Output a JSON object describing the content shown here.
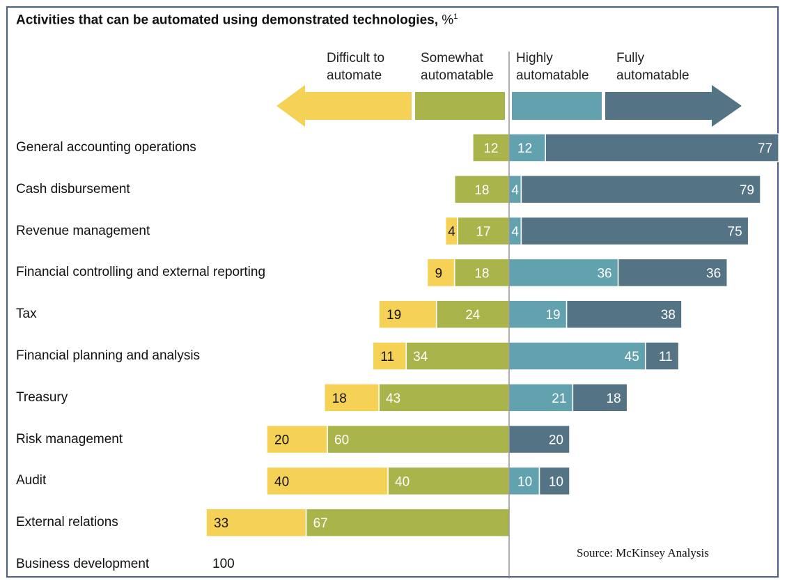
{
  "chart_data": {
    "type": "bar",
    "stacked": "diverging",
    "title": "Activities that can be automated using demonstrated technologies,",
    "title_unit": "%",
    "title_footnote": "1",
    "legend": [
      {
        "name": "Difficult to automate",
        "color": "#f5d155"
      },
      {
        "name": "Somewhat automatable",
        "color": "#a9b44a"
      },
      {
        "name": "Highly automatable",
        "color": "#62a2ae"
      },
      {
        "name": "Fully automatable",
        "color": "#547384"
      }
    ],
    "categories": [
      "General accounting operations",
      "Cash disbursement",
      "Revenue management",
      "Financial controlling and external reporting",
      "Tax",
      "Financial planning and analysis",
      "Treasury",
      "Risk management",
      "Audit",
      "External relations",
      "Business development"
    ],
    "series": [
      {
        "name": "Difficult to automate",
        "values": [
          null,
          null,
          4,
          9,
          19,
          11,
          18,
          20,
          40,
          33,
          100
        ]
      },
      {
        "name": "Somewhat automatable",
        "values": [
          12,
          18,
          17,
          18,
          24,
          34,
          43,
          60,
          40,
          67,
          null
        ]
      },
      {
        "name": "Highly automatable",
        "values": [
          12,
          4,
          4,
          36,
          19,
          45,
          21,
          null,
          10,
          null,
          null
        ]
      },
      {
        "name": "Fully automatable",
        "values": [
          77,
          79,
          75,
          36,
          38,
          11,
          18,
          20,
          10,
          null,
          null
        ]
      }
    ],
    "source": "Source:  McKinsey Analysis"
  }
}
